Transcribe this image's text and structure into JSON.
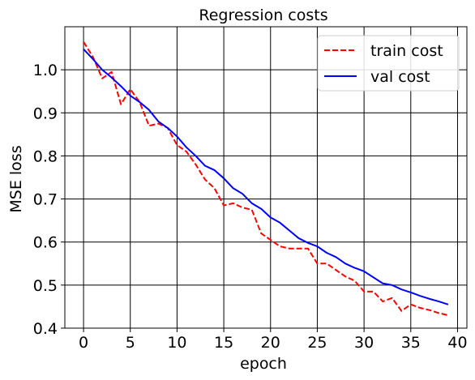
{
  "chart_data": {
    "type": "line",
    "title": "Regression costs",
    "xlabel": "epoch",
    "ylabel": "MSE loss",
    "xlim": [
      -2,
      41
    ],
    "ylim": [
      0.4,
      1.1
    ],
    "xticks": [
      0,
      5,
      10,
      15,
      20,
      25,
      30,
      35,
      40
    ],
    "yticks": [
      0.4,
      0.5,
      0.6,
      0.7,
      0.8,
      0.9,
      1.0
    ],
    "ytick_labels": [
      "0.4",
      "0.5",
      "0.6",
      "0.7",
      "0.8",
      "0.9",
      "1.0"
    ],
    "grid": true,
    "legend_position": "top-right",
    "x": [
      0,
      1,
      2,
      3,
      4,
      5,
      6,
      7,
      8,
      9,
      10,
      11,
      12,
      13,
      14,
      15,
      16,
      17,
      18,
      19,
      20,
      21,
      22,
      23,
      24,
      25,
      26,
      27,
      28,
      29,
      30,
      31,
      32,
      33,
      34,
      35,
      36,
      37,
      38,
      39
    ],
    "series": [
      {
        "name": "train cost",
        "color": "#ff0000",
        "style": "dashed",
        "values": [
          1.065,
          1.03,
          0.98,
          0.995,
          0.92,
          0.955,
          0.925,
          0.87,
          0.875,
          0.865,
          0.825,
          0.81,
          0.78,
          0.745,
          0.725,
          0.685,
          0.69,
          0.68,
          0.675,
          0.62,
          0.605,
          0.59,
          0.585,
          0.585,
          0.585,
          0.55,
          0.55,
          0.535,
          0.52,
          0.51,
          0.485,
          0.485,
          0.462,
          0.47,
          0.44,
          0.455,
          0.447,
          0.442,
          0.435,
          0.43
        ]
      },
      {
        "name": "val cost",
        "color": "#0000ff",
        "style": "solid",
        "values": [
          1.048,
          1.025,
          1.0,
          0.982,
          0.962,
          0.94,
          0.925,
          0.907,
          0.88,
          0.865,
          0.845,
          0.82,
          0.8,
          0.777,
          0.767,
          0.748,
          0.725,
          0.712,
          0.69,
          0.677,
          0.657,
          0.645,
          0.627,
          0.609,
          0.598,
          0.59,
          0.575,
          0.565,
          0.55,
          0.54,
          0.532,
          0.518,
          0.504,
          0.5,
          0.49,
          0.483,
          0.475,
          0.468,
          0.462,
          0.455
        ]
      }
    ]
  }
}
